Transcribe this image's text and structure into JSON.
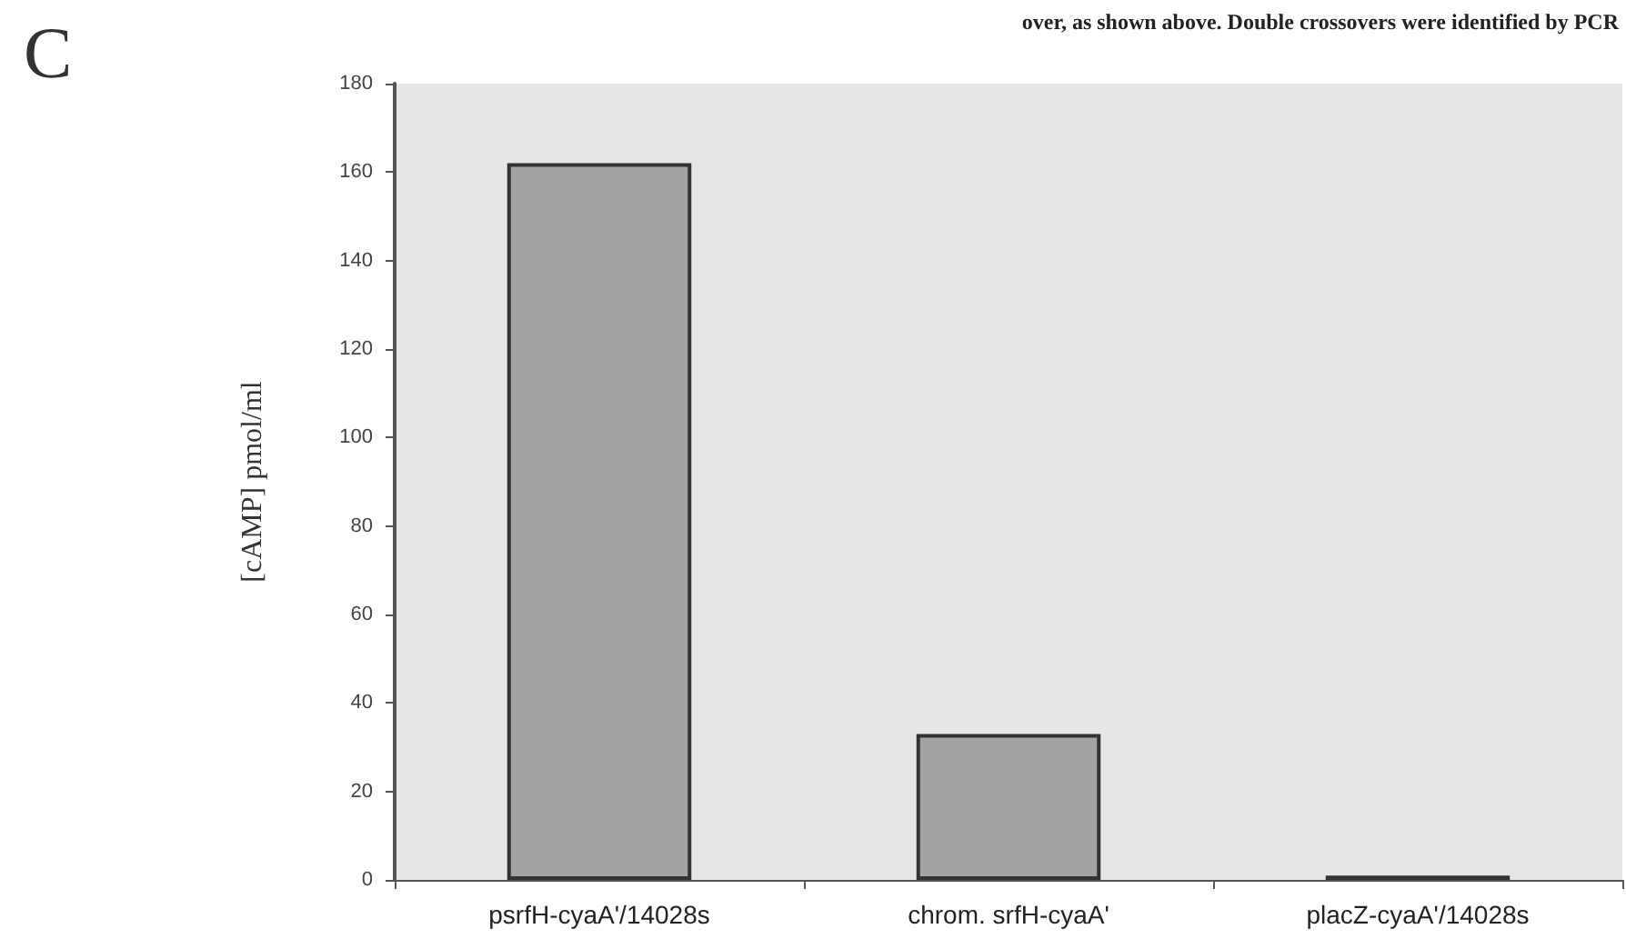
{
  "chart_data": {
    "type": "bar",
    "title": "C",
    "ylabel": "[cAMP] pmol/ml",
    "annotations": [
      "over, as shown above. Double crossovers were identified by PCR"
    ],
    "categories": [
      "psrfH-cyaA'/14028s",
      "chrom. srfH-cyaA'",
      "placZ-cyaA'/14028s"
    ],
    "values": [
      162,
      33,
      1
    ],
    "color": "#a3a3a3",
    "ylim": [
      0,
      180
    ],
    "yticks": [
      0,
      20,
      40,
      60,
      80,
      100,
      120,
      140,
      160,
      180
    ],
    "grid": false
  }
}
